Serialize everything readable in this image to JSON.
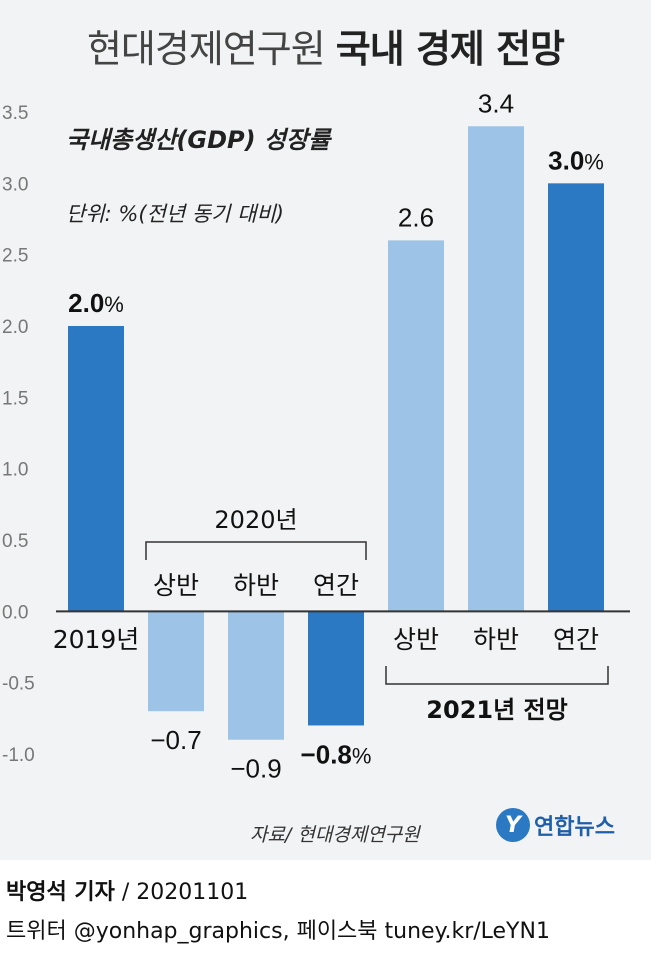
{
  "title_normal": "현대경제연구원",
  "title_bold": "국내 경제 전망",
  "subtitle": "국내총생산(GDP) 성장률",
  "unit": "단위: %(전년 동기 대비)",
  "source": "자료/ 현대경제연구원",
  "logo": {
    "mark": "Y",
    "text": "연합뉴스"
  },
  "byline_name": "박영석 기자",
  "byline_date": "/  20201101",
  "footer_line2": "트위터 @yonhap_graphics, 페이스북 tuney.kr/LeYN1",
  "colors": {
    "light": "#9dc3e6",
    "dark": "#2b79c2",
    "bg": "#f2f3f4"
  },
  "chart_data": {
    "type": "bar",
    "ylim": [
      -1.0,
      3.5
    ],
    "yticks": [
      "3.5",
      "3.0",
      "2.5",
      "2.0",
      "1.5",
      "1.0",
      "0.5",
      "0.0",
      "-0.5",
      "-1.0"
    ],
    "ytick_values": [
      3.5,
      3.0,
      2.5,
      2.0,
      1.5,
      1.0,
      0.5,
      0.0,
      -0.5,
      -1.0
    ],
    "grid": false,
    "bars": [
      {
        "category": "2019년",
        "value": 2.0,
        "label": "2.0",
        "suffix": "%",
        "shade": "dark",
        "bold": true
      },
      {
        "category": "상반",
        "value": -0.7,
        "label": "−0.7",
        "suffix": "",
        "shade": "light",
        "bold": false
      },
      {
        "category": "하반",
        "value": -0.9,
        "label": "−0.9",
        "suffix": "",
        "shade": "light",
        "bold": false
      },
      {
        "category": "연간",
        "value": -0.8,
        "label": "−0.8",
        "suffix": "%",
        "shade": "dark",
        "bold": true
      },
      {
        "category": "상반",
        "value": 2.6,
        "label": "2.6",
        "suffix": "",
        "shade": "light",
        "bold": false
      },
      {
        "category": "하반",
        "value": 3.4,
        "label": "3.4",
        "suffix": "",
        "shade": "light",
        "bold": false
      },
      {
        "category": "연간",
        "value": 3.0,
        "label": "3.0",
        "suffix": "%",
        "shade": "dark",
        "bold": true
      }
    ],
    "groups": [
      {
        "label": "2020년",
        "bold": false
      },
      {
        "label": "2021년 전망",
        "bold": true
      }
    ]
  }
}
